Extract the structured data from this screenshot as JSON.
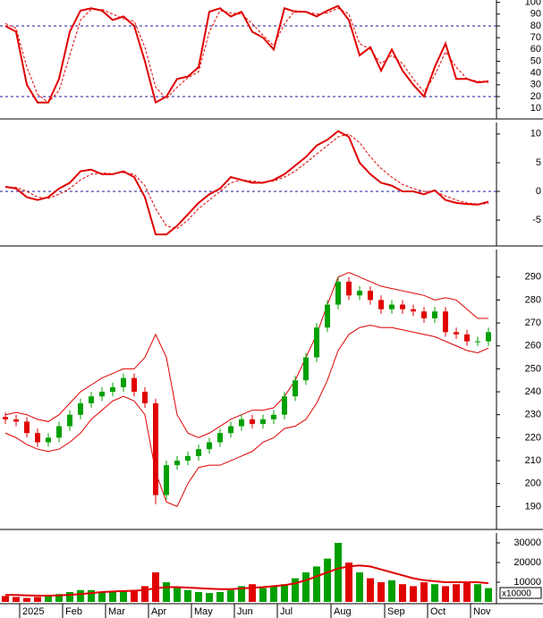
{
  "chart_data": [
    {
      "type": "line",
      "ylim": [
        1,
        102
      ],
      "yticks": [
        100,
        90,
        80,
        70,
        60,
        50,
        40,
        30,
        20,
        10
      ],
      "ref_lines": [
        80,
        20
      ],
      "ref_color": "#1a1aa0",
      "series": [
        {
          "color": "#e00000",
          "dash": false,
          "values": [
            80,
            75,
            30,
            15,
            15,
            35,
            75,
            93,
            95,
            93,
            85,
            88,
            80,
            50,
            15,
            20,
            35,
            37,
            45,
            92,
            95,
            88,
            92,
            75,
            70,
            60,
            95,
            92,
            92,
            88,
            93,
            97,
            85,
            55,
            62,
            42,
            60,
            42,
            30,
            20,
            45,
            65,
            35,
            35,
            32,
            33
          ]
        },
        {
          "color": "#e00000",
          "dash": true,
          "values": [
            82,
            78,
            45,
            22,
            15,
            25,
            55,
            85,
            94,
            94,
            90,
            86,
            84,
            62,
            28,
            18,
            28,
            36,
            41,
            75,
            93,
            91,
            90,
            82,
            72,
            63,
            82,
            93,
            92,
            90,
            91,
            95,
            90,
            65,
            60,
            48,
            55,
            48,
            35,
            24,
            38,
            58,
            45,
            35,
            33,
            32
          ]
        }
      ]
    },
    {
      "type": "line",
      "ylim": [
        -9.5,
        12
      ],
      "yticks": [
        10,
        5,
        0,
        -5
      ],
      "ref_lines": [
        0
      ],
      "ref_color": "#1a1aa0",
      "series": [
        {
          "color": "#e00000",
          "dash": false,
          "values": [
            0.8,
            0.5,
            -1,
            -1.5,
            -1,
            0.5,
            1.5,
            3.5,
            3.8,
            3,
            3,
            3.5,
            2.5,
            -1,
            -7.5,
            -7.5,
            -6,
            -4,
            -2,
            -0.5,
            0.5,
            2.5,
            2,
            1.5,
            1.5,
            2,
            3,
            4.5,
            6,
            8,
            9,
            10.5,
            9.5,
            5,
            3,
            1.5,
            1,
            0,
            0,
            -0.5,
            0.2,
            -1.5,
            -2,
            -2.2,
            -2.3,
            -1.8
          ]
        },
        {
          "color": "#e00000",
          "dash": true,
          "values": [
            0.8,
            0.7,
            0,
            -1,
            -1.2,
            -0.5,
            0.5,
            2,
            3,
            3.2,
            3.1,
            3.3,
            3,
            1,
            -3,
            -6,
            -6.5,
            -5,
            -3,
            -1.5,
            0,
            1.5,
            2,
            1.8,
            1.6,
            1.8,
            2.5,
            3.5,
            5,
            6.5,
            8,
            9.5,
            10,
            8.5,
            6,
            4,
            2.5,
            1.2,
            0.5,
            0,
            0,
            -0.8,
            -1.5,
            -2,
            -2.2,
            -2.1
          ]
        }
      ]
    },
    {
      "type": "candlestick",
      "ylim": [
        180,
        302
      ],
      "yticks": [
        190,
        200,
        210,
        220,
        230,
        240,
        250,
        260,
        270,
        280,
        290
      ],
      "up_color": "#00a000",
      "down_color": "#e00000",
      "band_color": "#e00000",
      "open": [
        229,
        228,
        227,
        222,
        218,
        220,
        225,
        230,
        235,
        238,
        240,
        242,
        246,
        240,
        235,
        195,
        208,
        210,
        212,
        215,
        218,
        222,
        225,
        228,
        226,
        228,
        230,
        238,
        245,
        255,
        268,
        278,
        288,
        282,
        284,
        280,
        276,
        278,
        276,
        275,
        272,
        275,
        266,
        265,
        262,
        262
      ],
      "high": [
        231,
        230,
        229,
        224,
        222,
        227,
        232,
        237,
        240,
        242,
        244,
        248,
        248,
        242,
        237,
        210,
        212,
        214,
        217,
        220,
        224,
        227,
        230,
        230,
        230,
        232,
        240,
        247,
        257,
        270,
        280,
        290,
        290,
        286,
        286,
        282,
        280,
        280,
        278,
        277,
        277,
        277,
        268,
        267,
        264,
        268
      ],
      "low": [
        226,
        225,
        220,
        216,
        216,
        218,
        223,
        228,
        233,
        236,
        238,
        240,
        238,
        233,
        191,
        193,
        206,
        208,
        210,
        213,
        216,
        220,
        223,
        224,
        224,
        226,
        228,
        236,
        243,
        253,
        266,
        276,
        280,
        280,
        278,
        274,
        274,
        274,
        273,
        270,
        270,
        264,
        263,
        260,
        260,
        260
      ],
      "close": [
        228,
        227,
        222,
        218,
        220,
        225,
        230,
        235,
        238,
        240,
        242,
        246,
        240,
        235,
        195,
        208,
        210,
        212,
        215,
        218,
        222,
        225,
        228,
        226,
        228,
        230,
        238,
        245,
        255,
        268,
        278,
        288,
        282,
        284,
        280,
        276,
        278,
        276,
        275,
        272,
        275,
        266,
        265,
        262,
        262,
        266
      ],
      "upper": [
        230,
        231,
        230,
        228,
        227,
        230,
        235,
        240,
        243,
        246,
        248,
        250,
        250,
        255,
        265,
        255,
        230,
        222,
        220,
        222,
        225,
        228,
        230,
        232,
        232,
        233,
        238,
        245,
        255,
        265,
        278,
        290,
        292,
        290,
        288,
        286,
        285,
        284,
        283,
        282,
        280,
        281,
        280,
        276,
        272,
        272
      ],
      "lower": [
        222,
        220,
        217,
        215,
        214,
        215,
        218,
        222,
        228,
        232,
        236,
        238,
        236,
        230,
        205,
        192,
        190,
        200,
        207,
        208,
        208,
        210,
        212,
        214,
        218,
        220,
        224,
        225,
        228,
        235,
        245,
        258,
        265,
        268,
        269,
        268,
        268,
        267,
        266,
        265,
        264,
        262,
        260,
        258,
        257,
        259
      ]
    },
    {
      "type": "bar",
      "ylim": [
        0,
        35000
      ],
      "yticks": [
        10000,
        20000,
        30000
      ],
      "unit_label": "x10000",
      "categories": [
        null,
        null,
        "2025",
        null,
        null,
        null,
        "Feb",
        null,
        null,
        null,
        "Mar",
        null,
        null,
        null,
        "Apr",
        null,
        null,
        null,
        "May",
        null,
        null,
        null,
        "Jun",
        null,
        null,
        null,
        "Jul",
        null,
        null,
        null,
        null,
        "Aug",
        null,
        null,
        null,
        null,
        "Sep",
        null,
        null,
        null,
        "Oct",
        null,
        null,
        null,
        "Nov",
        null
      ],
      "values": [
        3000,
        2500,
        2000,
        2500,
        3000,
        4000,
        5000,
        6000,
        6000,
        5000,
        5000,
        5500,
        6000,
        8000,
        15000,
        10000,
        7000,
        6000,
        5000,
        4500,
        5000,
        6000,
        8000,
        9000,
        7000,
        8000,
        9000,
        12000,
        15000,
        18000,
        22000,
        30000,
        20000,
        15000,
        12000,
        10000,
        11000,
        9000,
        8000,
        10000,
        9000,
        8000,
        9000,
        10000,
        9000,
        7000
      ],
      "ma": {
        "color": "#e00000",
        "values": [
          3500,
          3500,
          3300,
          3200,
          3200,
          3300,
          3600,
          4000,
          4500,
          5000,
          5300,
          5500,
          5700,
          6000,
          7000,
          7500,
          7500,
          7300,
          7000,
          6700,
          6500,
          6500,
          6800,
          7200,
          7500,
          8000,
          8500,
          9500,
          11000,
          13000,
          15000,
          17000,
          18000,
          18500,
          18000,
          16500,
          15000,
          13500,
          12000,
          11000,
          10500,
          10000,
          10000,
          10000,
          10000,
          9500
        ]
      }
    }
  ]
}
